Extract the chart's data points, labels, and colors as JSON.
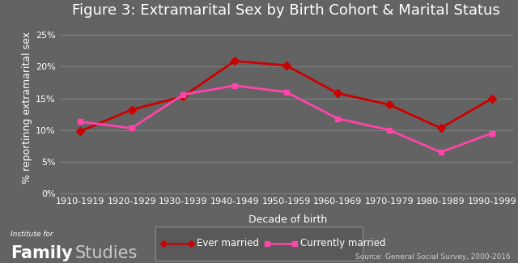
{
  "title": "Figure 3: Extramarital Sex by Birth Cohort & Marital Status",
  "xlabel": "Decade of birth",
  "ylabel": "% reportinng extramarital sex",
  "categories": [
    "1910-1919",
    "1920-1929",
    "1930-1939",
    "1940-1949",
    "1950-1959",
    "1960-1969",
    "1970-1979",
    "1980-1989",
    "1990-1999"
  ],
  "ever_married": [
    9.8,
    13.2,
    15.3,
    20.9,
    20.2,
    15.8,
    14.0,
    10.3,
    15.0
  ],
  "currently_married": [
    11.3,
    10.3,
    15.6,
    17.0,
    16.0,
    11.8,
    10.0,
    6.5,
    9.5
  ],
  "ever_married_color": "#cc0000",
  "currently_married_color": "#ff44aa",
  "background_color": "#636363",
  "plot_bg_color": "#636363",
  "text_color": "#ffffff",
  "grid_color": "#808080",
  "ylim": [
    0,
    27
  ],
  "yticks": [
    0,
    5,
    10,
    15,
    20,
    25
  ],
  "ytick_labels": [
    "0%",
    "5%",
    "10%",
    "15%",
    "20%",
    "25%"
  ],
  "legend_ever": "Ever married",
  "legend_currently": "Currently married",
  "source_text": "Source: General Social Survey, 2000-2016",
  "institute_italic": "Institute for",
  "family_bold": "Family",
  "studies_regular": "Studies",
  "title_fontsize": 13,
  "axis_label_fontsize": 9,
  "tick_fontsize": 8,
  "legend_fontsize": 8.5
}
